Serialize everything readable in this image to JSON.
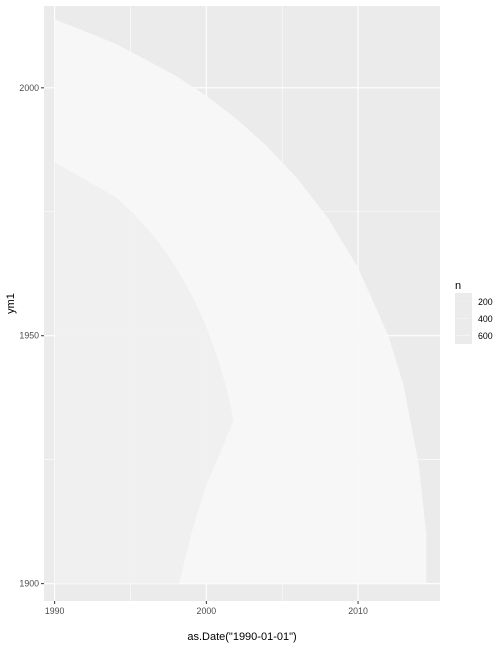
{
  "chart_data": {
    "type": "area",
    "title": "",
    "xlabel": "as.Date(\"1990-01-01\")",
    "ylabel": "ym1",
    "x_type": "year",
    "xlim": [
      1989.3,
      2015.4
    ],
    "ylim": [
      1896.5,
      2016.5
    ],
    "x_ticks": [
      1990,
      2000,
      2010
    ],
    "y_ticks": [
      1900,
      1950,
      2000
    ],
    "grid": true,
    "panel_background": "#ebebeb",
    "grid_color": "#ffffff",
    "fill_color": "#f7f7f7",
    "legend": {
      "title": "n",
      "position": "right",
      "entries": [
        {
          "label": "200",
          "value": 200
        },
        {
          "label": "400",
          "value": 400
        },
        {
          "label": "600",
          "value": 600
        }
      ]
    },
    "left_edge": {
      "x": 1990,
      "y_min": 1900,
      "y_max": 2013.8
    },
    "boundary": [
      {
        "x": 1990.0,
        "y": 2013.8
      },
      {
        "x": 1992.0,
        "y": 2011.4
      },
      {
        "x": 1994.0,
        "y": 2008.9
      },
      {
        "x": 1996.0,
        "y": 2005.7
      },
      {
        "x": 1998.0,
        "y": 2002.4
      },
      {
        "x": 2000.0,
        "y": 1998.4
      },
      {
        "x": 2002.0,
        "y": 1993.7
      },
      {
        "x": 2004.0,
        "y": 1988.2
      },
      {
        "x": 2006.0,
        "y": 1981.7
      },
      {
        "x": 2008.0,
        "y": 1973.8
      },
      {
        "x": 2010.0,
        "y": 1963.7
      },
      {
        "x": 2012.0,
        "y": 1950.0
      },
      {
        "x": 2013.0,
        "y": 1940.0
      },
      {
        "x": 2014.0,
        "y": 1924.0
      },
      {
        "x": 2014.5,
        "y": 1910.0
      },
      {
        "x": 2014.5,
        "y": 1900.0
      }
    ],
    "inner_boundary": [
      {
        "x": 1998.2,
        "y": 1900.0
      },
      {
        "x": 1999.0,
        "y": 1910.0
      },
      {
        "x": 2000.0,
        "y": 1920.0
      },
      {
        "x": 2001.0,
        "y": 1927.0
      },
      {
        "x": 2001.8,
        "y": 1933.0
      }
    ]
  }
}
